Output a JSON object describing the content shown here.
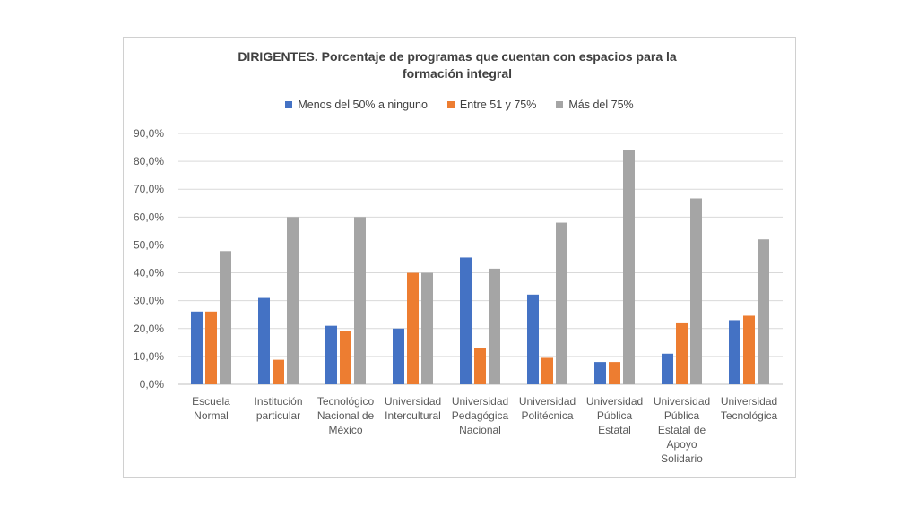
{
  "chart_data": {
    "type": "bar",
    "title": "DIRIGENTES. Porcentaje de programas que cuentan con espacios para la formación integral",
    "categories": [
      [
        "Escuela",
        "Normal"
      ],
      [
        "Institución",
        "particular"
      ],
      [
        "Tecnológico",
        "Nacional de",
        "México"
      ],
      [
        "Universidad",
        "Intercultural"
      ],
      [
        "Universidad",
        "Pedagógica",
        "Nacional"
      ],
      [
        "Universidad",
        "Politécnica"
      ],
      [
        "Universidad",
        "Pública",
        "Estatal"
      ],
      [
        "Universidad",
        "Pública",
        "Estatal de",
        "Apoyo",
        "Solidario"
      ],
      [
        "Universidad",
        "Tecnológica"
      ]
    ],
    "series": [
      {
        "name": "Menos del 50% a ninguno",
        "color": "#4472C4",
        "values": [
          26.1,
          31.0,
          21.0,
          20.0,
          45.5,
          32.2,
          8.0,
          11.0,
          23.0
        ]
      },
      {
        "name": "Entre 51 y 75%",
        "color": "#ED7D31",
        "values": [
          26.1,
          8.8,
          19.0,
          40.0,
          13.0,
          9.5,
          8.0,
          22.2,
          24.6
        ]
      },
      {
        "name": "Más del 75%",
        "color": "#A5A5A5",
        "values": [
          47.8,
          60.0,
          60.0,
          40.0,
          41.5,
          58.0,
          84.0,
          66.7,
          52.0
        ]
      }
    ],
    "ylim": [
      0,
      90
    ],
    "yticks": [
      "0,0%",
      "10,0%",
      "20,0%",
      "30,0%",
      "40,0%",
      "50,0%",
      "60,0%",
      "70,0%",
      "80,0%",
      "90,0%"
    ],
    "grid": true,
    "legend": "top"
  }
}
